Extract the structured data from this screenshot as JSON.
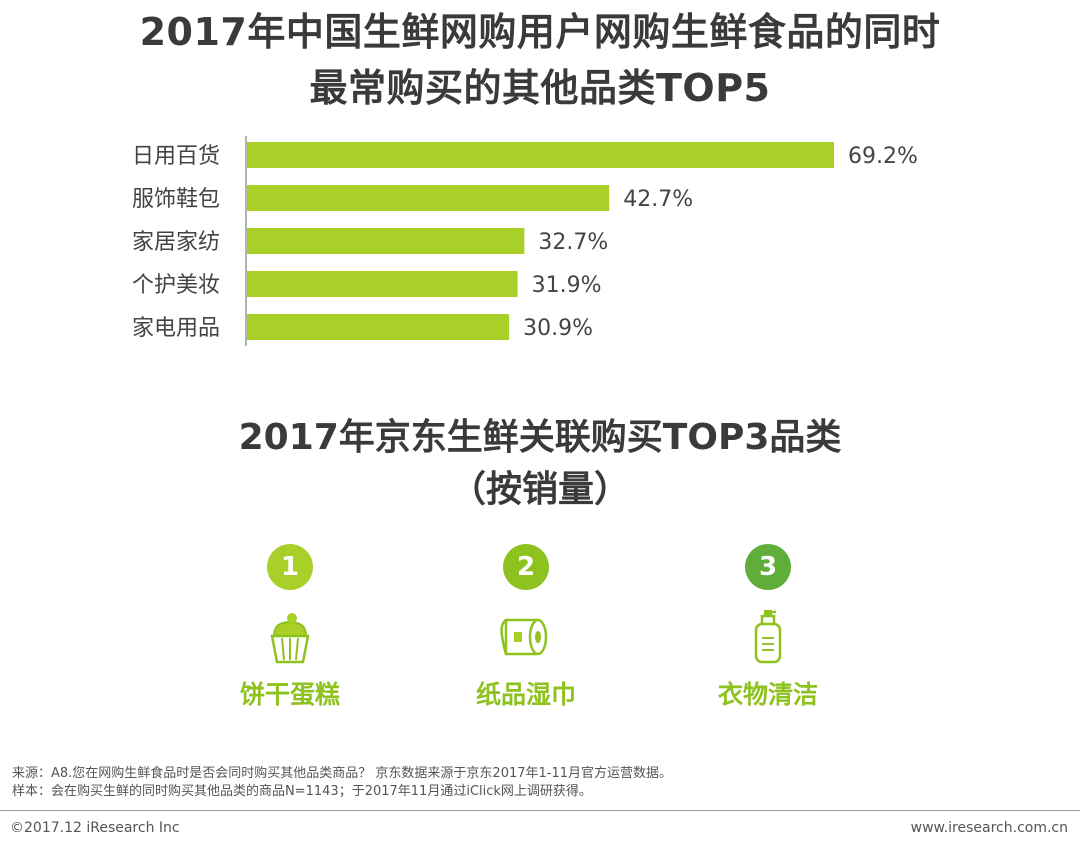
{
  "title": {
    "line1": "2017年中国生鲜网购用户网购生鲜食品的同时",
    "line2": "最常购买的其他品类TOP5"
  },
  "chart_data": {
    "type": "bar",
    "orientation": "horizontal",
    "title": "2017年中国生鲜网购用户网购生鲜食品的同时最常购买的其他品类TOP5",
    "categories": [
      "日用百货",
      "服饰鞋包",
      "家居家纺",
      "个护美妆",
      "家电用品"
    ],
    "values": [
      69.2,
      42.7,
      32.7,
      31.9,
      30.9
    ],
    "value_labels": [
      "69.2%",
      "42.7%",
      "32.7%",
      "31.9%",
      "30.9%"
    ],
    "unit": "%",
    "xlim": [
      0,
      69.2
    ],
    "grid": false,
    "legend": "none",
    "bar_color": "#a9cf29"
  },
  "section2": {
    "title_line1": "2017年京东生鲜关联购买TOP3品类",
    "title_line2": "（按销量）",
    "items": [
      {
        "rank": "1",
        "label": "饼干蛋糕",
        "icon": "cupcake-icon",
        "color": "#a9cf29"
      },
      {
        "rank": "2",
        "label": "纸品湿巾",
        "icon": "paper-roll-icon",
        "color": "#8dc21f"
      },
      {
        "rank": "3",
        "label": "衣物清洁",
        "icon": "detergent-bottle-icon",
        "color": "#5fae3a"
      }
    ]
  },
  "footnote": {
    "source": "来源：A8.您在网购生鲜食品时是否会同时购买其他品类商品？ 京东数据来源于京东2017年1-11月官方运营数据。",
    "sample": "样本：会在购买生鲜的同时购买其他品类的商品N=1143；于2017年11月通过iClick网上调研获得。"
  },
  "footer": {
    "copyright": "©2017.12 iResearch Inc",
    "website": "www.iresearch.com.cn"
  }
}
